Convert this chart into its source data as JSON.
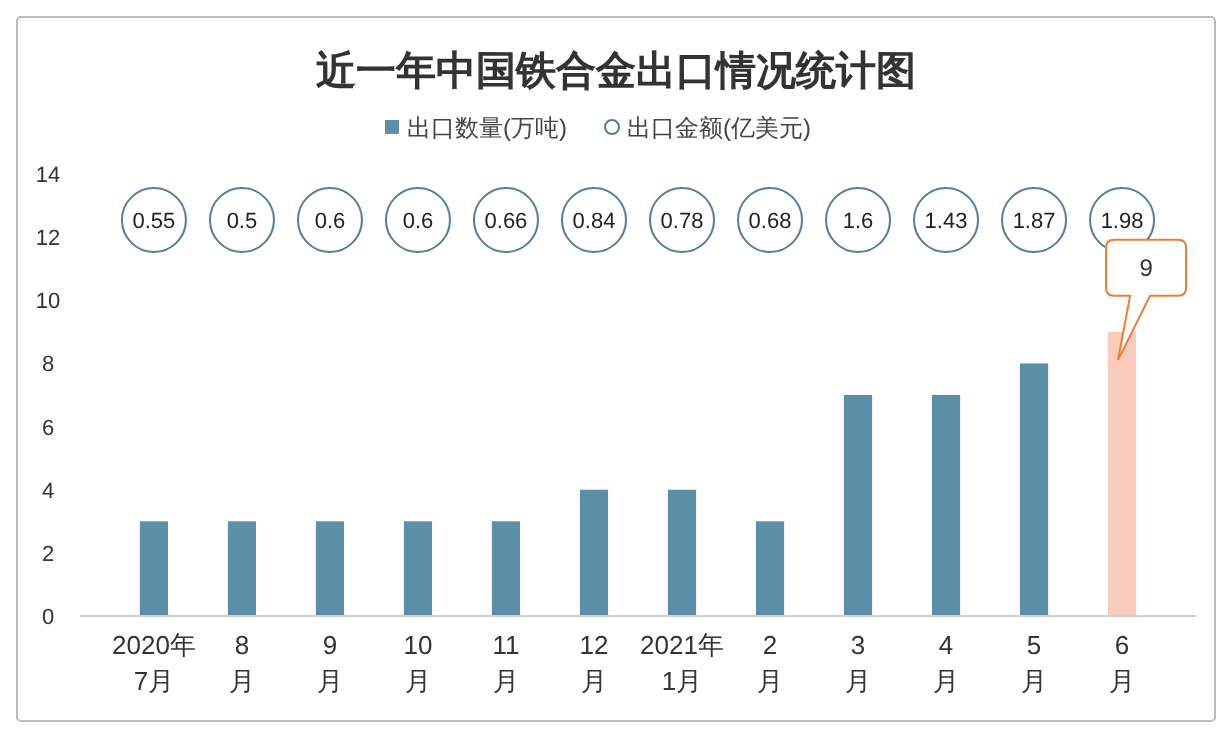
{
  "chart_data": {
    "type": "bar",
    "title": "近一年中国铁合金出口情况统计图",
    "categories": [
      "2020年\n7月",
      "8\n月",
      "9\n月",
      "10\n月",
      "11\n月",
      "12\n月",
      "2021年\n1月",
      "2\n月",
      "3\n月",
      "4\n月",
      "5\n月",
      "6\n月"
    ],
    "series": [
      {
        "name": "出口数量(万吨)",
        "color": "#5b8fa8",
        "colors": [
          "#5b8fa8",
          "#5b8fa8",
          "#5b8fa8",
          "#5b8fa8",
          "#5b8fa8",
          "#5b8fa8",
          "#5b8fa8",
          "#5b8fa8",
          "#5b8fa8",
          "#5b8fa8",
          "#5b8fa8",
          "#f8cbbd"
        ],
        "values": [
          3,
          3,
          3,
          3,
          3,
          4,
          4,
          3,
          7,
          7,
          8,
          9
        ]
      },
      {
        "name": "出口金额(亿美元)",
        "type": "scatter",
        "marker": "circle",
        "color": "#4f7f99",
        "values": [
          null,
          null,
          null,
          null,
          null,
          null,
          null,
          null,
          null,
          null,
          null,
          null
        ]
      }
    ],
    "ylim": [
      0,
      14
    ],
    "yticks": [
      0,
      2,
      4,
      6,
      8,
      10,
      12,
      14
    ],
    "legend": "top",
    "annotations": [
      {
        "text": "0.55",
        "x": "2020年\n7月"
      },
      {
        "text": "0.5",
        "x": "8\n月"
      },
      {
        "text": "0.6",
        "x": "9\n月"
      },
      {
        "text": "0.6",
        "x": "10\n月"
      },
      {
        "text": "0.66",
        "x": "11\n月"
      },
      {
        "text": "0.84",
        "x": "12\n月"
      },
      {
        "text": "0.78",
        "x": "2021年\n1月"
      },
      {
        "text": "0.68",
        "x": "2\n月"
      },
      {
        "text": "1.6",
        "x": "3\n月"
      },
      {
        "text": "1.43",
        "x": "4\n月"
      },
      {
        "text": "1.87",
        "x": "5\n月"
      },
      {
        "text": "1.98",
        "x": "6\n月"
      },
      {
        "text": "9",
        "x": "6\n月",
        "y": 9
      }
    ]
  }
}
